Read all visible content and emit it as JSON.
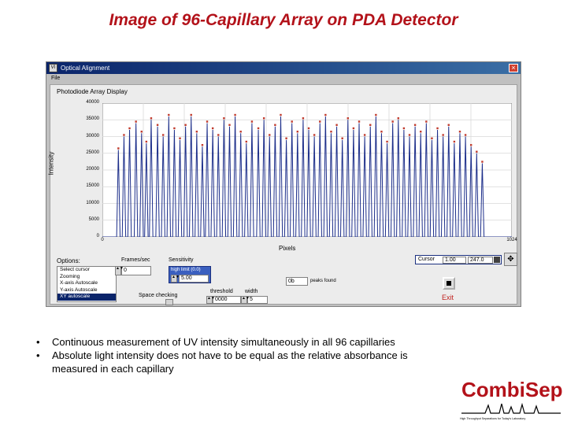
{
  "slide": {
    "title": "Image of 96-Capillary Array on PDA Detector",
    "bullets": [
      "Continuous measurement of UV intensity simultaneously in all 96 capillaries",
      "Absolute light intensity does not have to be equal as the relative absorbance is",
      "measured in each capillary"
    ],
    "bullet_marker": "•",
    "logo": {
      "name": "CombiSep",
      "tagline": "High Throughput Separations for Today's Laboratory"
    }
  },
  "window": {
    "app_icon": "VI",
    "title": "Optical Alignment",
    "menu": "File",
    "close_glyph": "×"
  },
  "plot": {
    "title": "Photodiode Array Display",
    "ylabel": "Intensity",
    "xlabel": "Pixels",
    "y_ticks": [
      "40000",
      "35000",
      "30000",
      "25000",
      "20000",
      "15000",
      "10000",
      "5000",
      "0"
    ],
    "x_ticks": [
      "0",
      "1024"
    ]
  },
  "chart_data": {
    "type": "line",
    "title": "Photodiode Array Display",
    "xlabel": "Pixels",
    "ylabel": "Intensity",
    "xlim": [
      0,
      1024
    ],
    "ylim": [
      0,
      40000
    ],
    "grid": true,
    "series_color": "#1c2e8a",
    "peak_marker_color": "#c0392b",
    "x": [
      40,
      54,
      68,
      84,
      98,
      110,
      122,
      138,
      152,
      166,
      180,
      194,
      208,
      222,
      236,
      250,
      262,
      276,
      290,
      304,
      318,
      332,
      346,
      360,
      374,
      390,
      404,
      418,
      432,
      446,
      460,
      474,
      488,
      502,
      516,
      530,
      544,
      558,
      572,
      586,
      600,
      614,
      628,
      642,
      656,
      670,
      684,
      698,
      712,
      726,
      740,
      754,
      768,
      782,
      796,
      810,
      824,
      838,
      852,
      866,
      880,
      894,
      908,
      922,
      936,
      950
    ],
    "values": [
      26000,
      30000,
      32000,
      34000,
      31000,
      28000,
      35000,
      33000,
      30000,
      36000,
      32000,
      29000,
      33000,
      36000,
      31000,
      27000,
      34000,
      32000,
      30000,
      35000,
      33000,
      36000,
      31000,
      28000,
      34000,
      32000,
      35000,
      30000,
      33000,
      36000,
      29000,
      34000,
      31000,
      35000,
      32000,
      30000,
      34000,
      36000,
      31000,
      33000,
      29000,
      35000,
      32000,
      34000,
      30000,
      33000,
      36000,
      31000,
      28000,
      34000,
      35000,
      32000,
      30000,
      33000,
      31000,
      34000,
      29000,
      32000,
      30000,
      33000,
      28000,
      31000,
      30000,
      27000,
      25000,
      22000
    ]
  },
  "controls": {
    "options_label": "Options:",
    "options": [
      "Select cursor",
      "Zooming",
      "X-axis Autoscale",
      "Y-axis Autoscale",
      "XY autoscale"
    ],
    "options_selected": 4,
    "frames_label": "Frames/sec",
    "frames_value": "0",
    "sensitivity_label": "Sensitivity",
    "sensitivity_sublabel": "high limit (0.0)",
    "sensitivity_value": "5.00",
    "space_checking_label": "Space checking",
    "threshold_label": "threshold",
    "threshold_value": "0000",
    "width_label": "width",
    "width_value": "5",
    "peaks_value": "0b",
    "peaks_label": "peaks found",
    "cursor_label": "Cursor",
    "cursor_x": "1.00",
    "cursor_y": "247.0",
    "exit_label": "Exit"
  }
}
